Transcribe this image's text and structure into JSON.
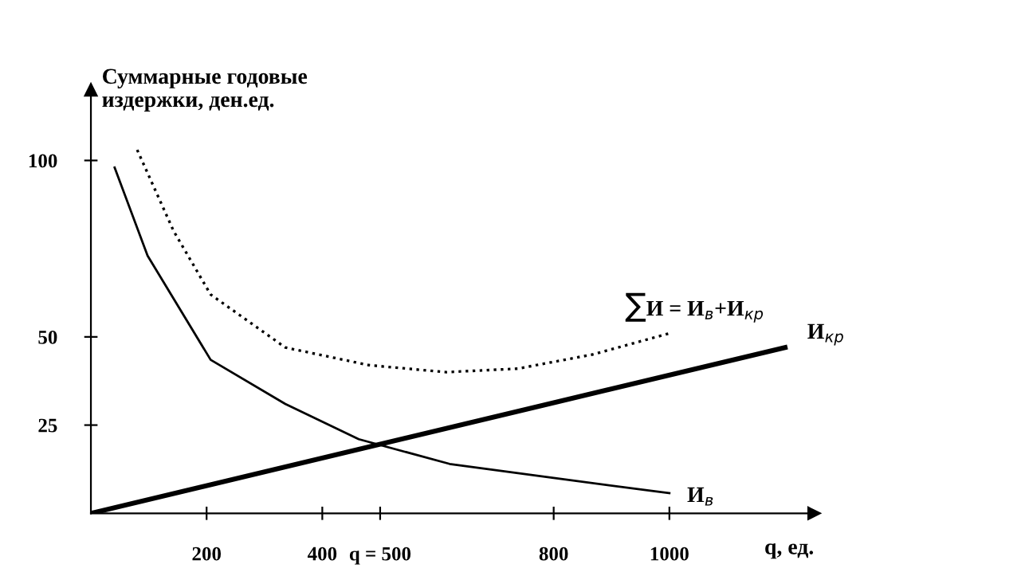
{
  "chart_data": {
    "type": "line",
    "ylabel": "Суммарные годовые\nиздержки, ден.ед.",
    "xlabel": "q, ед.",
    "xlim": [
      0,
      1250
    ],
    "ylim": [
      0,
      120
    ],
    "xticks": [
      200,
      400,
      {
        "value": 500,
        "label": "q = 500"
      },
      800,
      1000
    ],
    "yticks": [
      25,
      50,
      100
    ],
    "grid": false,
    "legend": false,
    "marker": "none",
    "series": [
      {
        "name": "И$_{в}$",
        "color": "#000000",
        "line_style": "solid",
        "x": [
          41,
          98,
          207,
          336,
          463,
          620,
          800,
          967,
          1000
        ],
        "values": [
          98,
          73,
          43.5,
          31,
          21,
          14,
          10,
          6.4,
          5.7
        ]
      },
      {
        "name": "И$_{кр}$",
        "color": "#000000",
        "line_style": "solid",
        "x": [
          0,
          1200
        ],
        "values": [
          0,
          47
        ]
      },
      {
        "name": "∑И = И$_{в}$+И$_{кр}$",
        "color": "#000000",
        "line_style": "dotted",
        "x": [
          80,
          143,
          207,
          336,
          480,
          614,
          738,
          867,
          1000
        ],
        "values": [
          103,
          80,
          62,
          47,
          42,
          40,
          41,
          45,
          51
        ]
      }
    ]
  }
}
